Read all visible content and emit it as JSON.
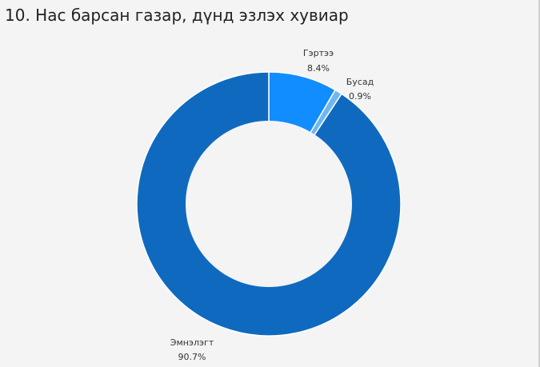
{
  "title": "10. Нас барсан газар, дүнд эзлэх хувиар",
  "colors": {
    "background": "#f4f4f4",
    "home": "#118dff",
    "other": "#6fb6f5",
    "hospital": "#0f6abf",
    "hole": "#f4f4f4"
  },
  "chart_data": {
    "type": "donut",
    "title": "10. Нас барсан газар, дүнд эзлэх хувиар",
    "slices": [
      {
        "name": "Гэртээ",
        "value": 8.4,
        "label": "8.4%",
        "color": "#118dff"
      },
      {
        "name": "Бусад",
        "value": 0.9,
        "label": "0.9%",
        "color": "#6fb6f5"
      },
      {
        "name": "Эмнэлэгт",
        "value": 90.7,
        "label": "90.7%",
        "color": "#0f6abf"
      }
    ],
    "start": "top",
    "direction": "clockwise"
  }
}
